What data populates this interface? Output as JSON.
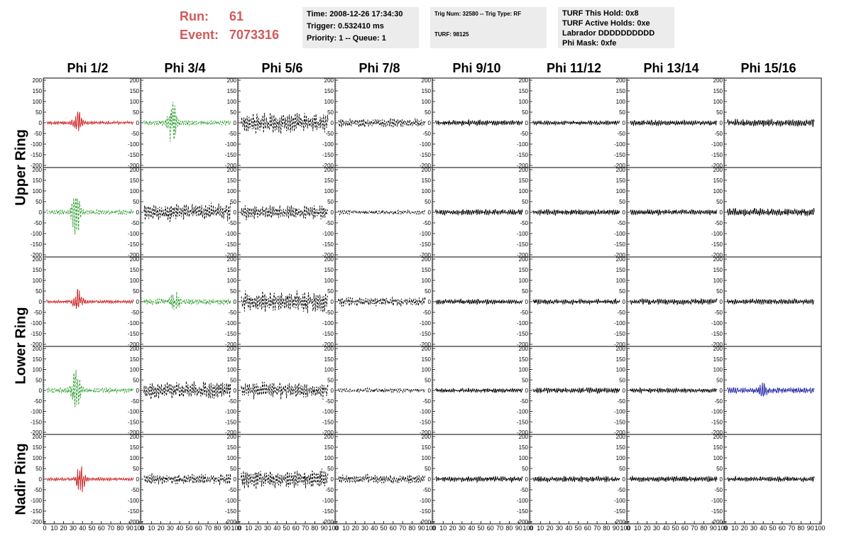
{
  "header": {
    "run_label": "Run:",
    "run_value": "61",
    "event_label": "Event:",
    "event_value": "7073316",
    "time_line": "Time: 2008-12-26 17:34:30",
    "trigger_line": "Trigger: 0.532410 ms",
    "priority_line": "Priority: 1 -- Queue: 1",
    "trig_num_line": "Trig Num: 32580 -- Trig Type: RF",
    "turf_line": "TURF: 98125",
    "turf_hold_line": "TURF This Hold: 0x8",
    "turf_active_line": "TURF Active Holds: 0xe",
    "labrador_line": "Labrador DDDDDDDDDD",
    "phi_mask_line": "Phi Mask: 0xfe",
    "run_color": "#d05a5a"
  },
  "columns": [
    "Phi 1/2",
    "Phi 3/4",
    "Phi 5/6",
    "Phi 7/8",
    "Phi 9/10",
    "Phi 11/12",
    "Phi 13/14",
    "Phi 15/16"
  ],
  "row_labels": [
    "Upper Ring",
    "Lower Ring",
    "Nadir Ring"
  ],
  "chart_data": {
    "type": "line",
    "ylim": [
      -200,
      200
    ],
    "xlim": [
      0,
      100
    ],
    "y_ticks": [
      200,
      150,
      100,
      50,
      0,
      -50,
      -100,
      -150,
      -200
    ],
    "x_ticks": [
      0,
      10,
      20,
      30,
      40,
      50,
      60,
      70,
      80,
      90,
      100
    ],
    "colors": {
      "red": "#cc2222",
      "green": "#229922",
      "black": "#000000",
      "blue": "#2222aa"
    },
    "note_rows": [
      "Upper Ring (2 rows)",
      "Lower Ring (2 rows)",
      "Nadir Ring (1 row)"
    ],
    "series": [
      [
        {
          "color": "red",
          "style": "solid",
          "amp": 60,
          "burst": 35,
          "noise": 8
        },
        {
          "color": "green",
          "style": "dashed",
          "amp": 120,
          "burst": 32,
          "noise": 12
        },
        {
          "color": "black",
          "style": "dashed",
          "amp": 55,
          "burst": -1,
          "noise": 55
        },
        {
          "color": "black",
          "style": "dashed",
          "amp": 25,
          "burst": -1,
          "noise": 25
        },
        {
          "color": "black",
          "style": "solid",
          "amp": 15,
          "burst": -1,
          "noise": 15
        },
        {
          "color": "black",
          "style": "solid",
          "amp": 12,
          "burst": -1,
          "noise": 12
        },
        {
          "color": "black",
          "style": "solid",
          "amp": 15,
          "burst": -1,
          "noise": 15
        },
        {
          "color": "black",
          "style": "solid",
          "amp": 20,
          "burst": -1,
          "noise": 15
        }
      ],
      [
        {
          "color": "green",
          "style": "dashed",
          "amp": 130,
          "burst": 33,
          "noise": 12
        },
        {
          "color": "black",
          "style": "dashed",
          "amp": 50,
          "burst": -1,
          "noise": 50
        },
        {
          "color": "black",
          "style": "dashed",
          "amp": 40,
          "burst": -1,
          "noise": 40
        },
        {
          "color": "black",
          "style": "dashed",
          "amp": 12,
          "burst": -1,
          "noise": 12
        },
        {
          "color": "black",
          "style": "solid",
          "amp": 15,
          "burst": -1,
          "noise": 15
        },
        {
          "color": "black",
          "style": "solid",
          "amp": 15,
          "burst": -1,
          "noise": 15
        },
        {
          "color": "black",
          "style": "solid",
          "amp": 15,
          "burst": -1,
          "noise": 15
        },
        {
          "color": "black",
          "style": "solid",
          "amp": 22,
          "burst": -1,
          "noise": 18
        }
      ],
      [
        {
          "color": "red",
          "style": "solid",
          "amp": 60,
          "burst": 35,
          "noise": 8
        },
        {
          "color": "green",
          "style": "dashed",
          "amp": 50,
          "burst": 35,
          "noise": 15
        },
        {
          "color": "black",
          "style": "dashed",
          "amp": 60,
          "burst": -1,
          "noise": 60
        },
        {
          "color": "black",
          "style": "dashed",
          "amp": 25,
          "burst": -1,
          "noise": 25
        },
        {
          "color": "black",
          "style": "solid",
          "amp": 15,
          "burst": -1,
          "noise": 15
        },
        {
          "color": "black",
          "style": "solid",
          "amp": 14,
          "burst": -1,
          "noise": 14
        },
        {
          "color": "black",
          "style": "solid",
          "amp": 16,
          "burst": -1,
          "noise": 16
        },
        {
          "color": "black",
          "style": "solid",
          "amp": 15,
          "burst": -1,
          "noise": 15
        }
      ],
      [
        {
          "color": "green",
          "style": "dashed",
          "amp": 130,
          "burst": 33,
          "noise": 12
        },
        {
          "color": "black",
          "style": "dashed",
          "amp": 50,
          "burst": -1,
          "noise": 50
        },
        {
          "color": "black",
          "style": "dashed",
          "amp": 45,
          "burst": -1,
          "noise": 45
        },
        {
          "color": "black",
          "style": "dashed",
          "amp": 12,
          "burst": -1,
          "noise": 12
        },
        {
          "color": "black",
          "style": "solid",
          "amp": 12,
          "burst": -1,
          "noise": 12
        },
        {
          "color": "black",
          "style": "solid",
          "amp": 15,
          "burst": -1,
          "noise": 15
        },
        {
          "color": "black",
          "style": "solid",
          "amp": 13,
          "burst": -1,
          "noise": 13
        },
        {
          "color": "blue",
          "style": "solid",
          "amp": 35,
          "burst": 40,
          "noise": 15
        }
      ],
      [
        {
          "color": "red",
          "style": "solid",
          "amp": 70,
          "burst": 38,
          "noise": 8
        },
        {
          "color": "black",
          "style": "dashed",
          "amp": 30,
          "burst": -1,
          "noise": 30
        },
        {
          "color": "black",
          "style": "dashed",
          "amp": 55,
          "burst": -1,
          "noise": 55
        },
        {
          "color": "black",
          "style": "dashed",
          "amp": 25,
          "burst": -1,
          "noise": 25
        },
        {
          "color": "black",
          "style": "solid",
          "amp": 15,
          "burst": -1,
          "noise": 15
        },
        {
          "color": "black",
          "style": "solid",
          "amp": 16,
          "burst": -1,
          "noise": 16
        },
        {
          "color": "black",
          "style": "solid",
          "amp": 16,
          "burst": -1,
          "noise": 16
        },
        {
          "color": "black",
          "style": "solid",
          "amp": 14,
          "burst": -1,
          "noise": 14
        }
      ]
    ]
  }
}
